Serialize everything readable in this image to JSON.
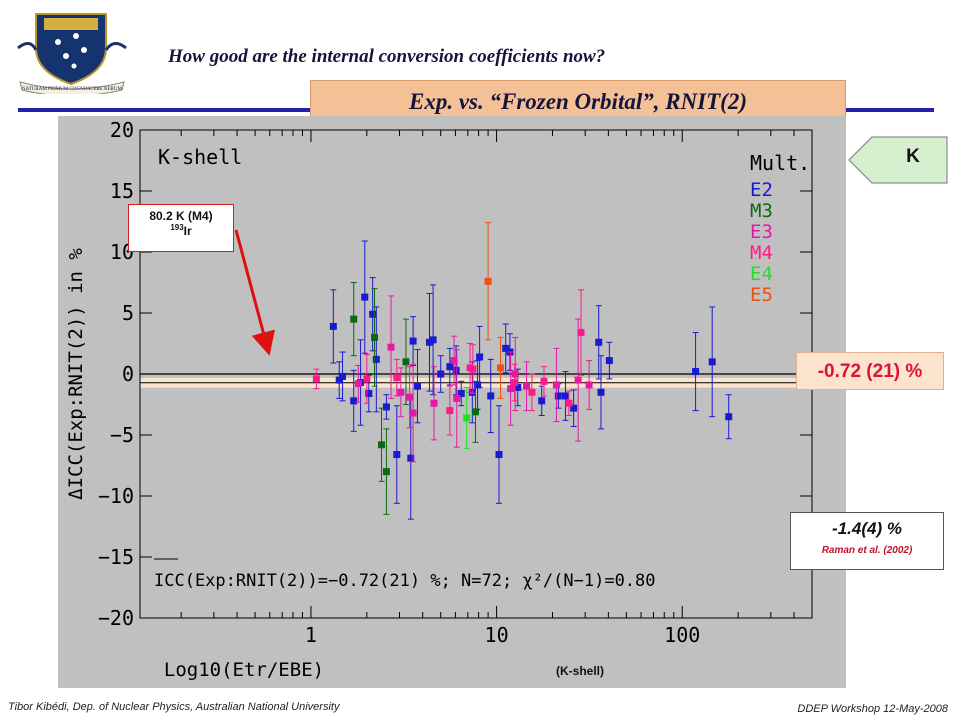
{
  "header": {
    "subtitle": "How good are the internal conversion coefficients now?",
    "banner": "Exp. vs. “Frozen Orbital”, RNIT(2)",
    "crest_motto": "NATURAM PRIMUM COGNOSCERE RERUM"
  },
  "tags": {
    "k_tag": "K",
    "mean_value": "-0.72 (21) %",
    "raman_value": "-1.4(4) %",
    "raman_ref": "Raman et al. (2002)"
  },
  "callout": {
    "line1": "80.2 K (M4)",
    "mass": "193",
    "element": "Ir"
  },
  "footer": {
    "left": "Tibor Kibédi, Dep. of Nuclear Physics, Australian National University",
    "right": "DDEP Workshop 12-May-2008"
  },
  "colors": {
    "E2": "#1a1ad0",
    "M3": "#0a6a14",
    "E3": "#e21aa6",
    "M4": "#ff1a8a",
    "E4": "#22e022",
    "E5": "#f05010",
    "mean_line": "#000000",
    "band": "#fbe3cd",
    "arrow": "#e01010"
  },
  "chart_data": {
    "type": "scatter",
    "panel_label": "K-shell",
    "xaxis_label": "Log10(Etr/EBE)",
    "xaxis_suffix": "(K-shell)",
    "ylabel": "ΔICC(Exp:RNIT(2)) in %",
    "x_scale": "log",
    "xlim": [
      0.12,
      500
    ],
    "ylim": [
      -20,
      20
    ],
    "x_ticks": [
      1,
      10,
      100
    ],
    "x_tick_labels": [
      "1",
      "10",
      "100"
    ],
    "y_ticks": [
      -20,
      -15,
      -10,
      -5,
      0,
      5,
      10,
      15,
      20
    ],
    "y_tick_labels": [
      "−20",
      "−15",
      "−10",
      "−5",
      "0",
      "5",
      "10",
      "15",
      "20"
    ],
    "legend_title": "Mult.",
    "legend": [
      "E2",
      "M3",
      "E3",
      "M4",
      "E4",
      "E5"
    ],
    "legend_placement": "top-right",
    "mean": -0.72,
    "mean_uncertainty": 0.21,
    "summary": "ICC(Exp:RNIT(2))=−0.72(21) %; N=72; χ²/(N−1)=0.80",
    "series": [
      {
        "name": "E2",
        "points": [
          {
            "x": 1.32,
            "y": 3.9,
            "err": 3.0
          },
          {
            "x": 1.42,
            "y": -0.5,
            "err": 1.5
          },
          {
            "x": 1.48,
            "y": -0.2,
            "err": 2.0
          },
          {
            "x": 1.7,
            "y": -2.2,
            "err": 2.5
          },
          {
            "x": 1.85,
            "y": -0.7,
            "err": 3.5
          },
          {
            "x": 1.95,
            "y": 6.3,
            "err": 4.6
          },
          {
            "x": 2.05,
            "y": -1.6,
            "err": 1.5
          },
          {
            "x": 2.15,
            "y": 4.9,
            "err": 3.0
          },
          {
            "x": 2.25,
            "y": 1.2,
            "err": 4.3
          },
          {
            "x": 2.55,
            "y": -2.7,
            "err": 1.0
          },
          {
            "x": 2.9,
            "y": -6.6,
            "err": 4.0
          },
          {
            "x": 3.45,
            "y": -6.9,
            "err": 5.0
          },
          {
            "x": 3.55,
            "y": 2.7,
            "err": 2.0
          },
          {
            "x": 3.75,
            "y": -1.0,
            "err": 3.0
          },
          {
            "x": 4.35,
            "y": 2.6,
            "err": 4.0
          },
          {
            "x": 4.55,
            "y": 2.8,
            "err": 4.5
          },
          {
            "x": 5.0,
            "y": 0.0,
            "err": 1.5
          },
          {
            "x": 5.6,
            "y": 0.6,
            "err": 1.5
          },
          {
            "x": 6.05,
            "y": 0.3,
            "err": 2.0
          },
          {
            "x": 6.45,
            "y": -1.6,
            "err": 1.0
          },
          {
            "x": 7.4,
            "y": -1.5,
            "err": 2.5
          },
          {
            "x": 7.9,
            "y": -0.9,
            "err": 2.0
          },
          {
            "x": 8.1,
            "y": 1.4,
            "err": 2.5
          },
          {
            "x": 9.3,
            "y": -1.8,
            "err": 3.0
          },
          {
            "x": 10.3,
            "y": -6.6,
            "err": 4.0
          },
          {
            "x": 11.2,
            "y": 2.1,
            "err": 2.0
          },
          {
            "x": 11.8,
            "y": 1.8,
            "err": 1.5
          },
          {
            "x": 13.0,
            "y": -1.1,
            "err": 1.5
          },
          {
            "x": 17.5,
            "y": -2.2,
            "err": 1.2
          },
          {
            "x": 21.5,
            "y": -1.8,
            "err": 1.0
          },
          {
            "x": 23.5,
            "y": -1.8,
            "err": 2.0
          },
          {
            "x": 26.0,
            "y": -2.8,
            "err": 1.5
          },
          {
            "x": 35.5,
            "y": 2.6,
            "err": 3.0
          },
          {
            "x": 36.5,
            "y": -1.5,
            "err": 3.0
          },
          {
            "x": 40.5,
            "y": 1.1,
            "err": 1.5
          },
          {
            "x": 118.0,
            "y": 0.2,
            "err": 3.2
          },
          {
            "x": 145.0,
            "y": 1.0,
            "err": 4.5
          },
          {
            "x": 178.0,
            "y": -3.5,
            "err": 1.8
          }
        ]
      },
      {
        "name": "M3",
        "points": [
          {
            "x": 1.7,
            "y": 4.5,
            "err": 3.0
          },
          {
            "x": 2.2,
            "y": 3.0,
            "err": 4.0
          },
          {
            "x": 2.4,
            "y": -5.8,
            "err": 3.0
          },
          {
            "x": 2.55,
            "y": -8.0,
            "err": 3.5
          },
          {
            "x": 3.25,
            "y": 1.0,
            "err": 3.5
          },
          {
            "x": 7.7,
            "y": -3.1,
            "err": 2.5
          }
        ]
      },
      {
        "name": "E3",
        "points": [
          {
            "x": 1.8,
            "y": -0.8,
            "err": 1.5
          },
          {
            "x": 2.7,
            "y": 2.2,
            "err": 4.2
          },
          {
            "x": 3.05,
            "y": -1.5,
            "err": 2.0
          },
          {
            "x": 3.4,
            "y": -1.9,
            "err": 2.5
          },
          {
            "x": 3.55,
            "y": -3.2,
            "err": 4.0
          },
          {
            "x": 4.6,
            "y": -2.4,
            "err": 3.0
          },
          {
            "x": 5.9,
            "y": 1.1,
            "err": 2.0
          },
          {
            "x": 6.1,
            "y": -2.0,
            "err": 4.0
          },
          {
            "x": 11.9,
            "y": -1.2,
            "err": 3.0
          },
          {
            "x": 12.6,
            "y": 0.0,
            "err": 3.0
          },
          {
            "x": 14.5,
            "y": -1.0,
            "err": 2.0
          },
          {
            "x": 21.0,
            "y": -0.9,
            "err": 3.0
          },
          {
            "x": 27.5,
            "y": -0.5,
            "err": 5.0
          },
          {
            "x": 31.5,
            "y": -0.9,
            "err": 2.0
          }
        ]
      },
      {
        "name": "M4",
        "points": [
          {
            "x": 1.07,
            "y": -0.4,
            "err": 0.8
          },
          {
            "x": 2.0,
            "y": -0.4,
            "err": 2.0
          },
          {
            "x": 2.9,
            "y": -0.3,
            "err": 1.5
          },
          {
            "x": 5.6,
            "y": -3.0,
            "err": 2.0
          },
          {
            "x": 7.2,
            "y": 0.5,
            "err": 2.0
          },
          {
            "x": 7.45,
            "y": 0.4,
            "err": 2.0
          },
          {
            "x": 12.5,
            "y": -0.7,
            "err": 1.5
          },
          {
            "x": 15.5,
            "y": -1.5,
            "err": 1.5
          },
          {
            "x": 18.0,
            "y": -0.6,
            "err": 1.2
          },
          {
            "x": 24.5,
            "y": -2.4,
            "err": 1.0
          },
          {
            "x": 28.5,
            "y": 3.4,
            "err": 3.5
          }
        ]
      },
      {
        "name": "E4",
        "points": [
          {
            "x": 6.9,
            "y": -3.6,
            "err": 2.5
          }
        ]
      },
      {
        "name": "E5",
        "points": [
          {
            "x": 9.0,
            "y": 7.6,
            "err": 4.8
          },
          {
            "x": 10.5,
            "y": 0.5,
            "err": 2.5
          }
        ]
      }
    ]
  }
}
